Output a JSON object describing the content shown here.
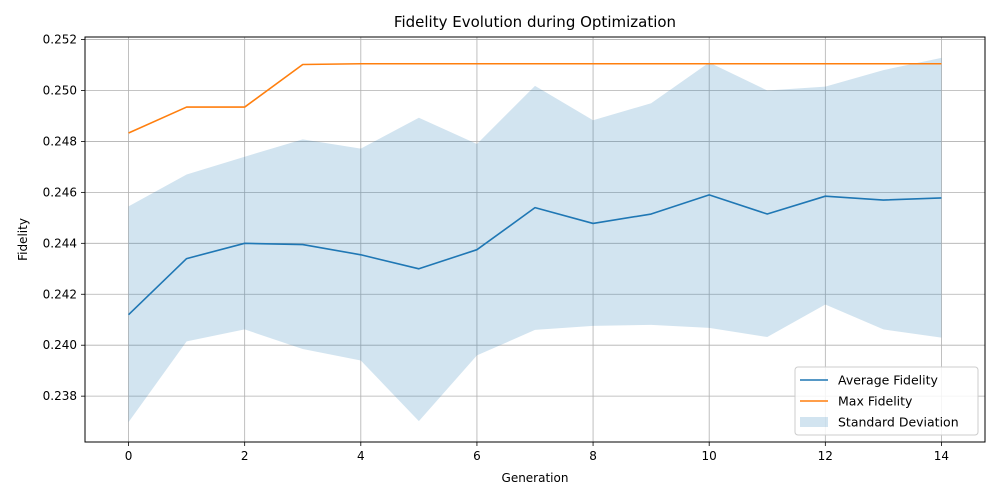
{
  "chart_data": {
    "type": "line",
    "title": "Fidelity Evolution during Optimization",
    "xlabel": "Generation",
    "ylabel": "Fidelity",
    "xlim": [
      -0.75,
      14.75
    ],
    "ylim": [
      0.2362,
      0.2521
    ],
    "xticks": [
      0,
      2,
      4,
      6,
      8,
      10,
      12,
      14
    ],
    "yticks": [
      0.238,
      0.24,
      0.242,
      0.244,
      0.246,
      0.248,
      0.25,
      0.252
    ],
    "grid": true,
    "legend_position": "bottom-right",
    "x": [
      0,
      1,
      2,
      3,
      4,
      5,
      6,
      7,
      8,
      9,
      10,
      11,
      12,
      13,
      14
    ],
    "series": [
      {
        "name": "Average Fidelity",
        "color": "#1f77b4",
        "values": [
          0.2412,
          0.2434,
          0.244,
          0.24395,
          0.24355,
          0.243,
          0.24375,
          0.2454,
          0.24478,
          0.24515,
          0.2459,
          0.24515,
          0.24585,
          0.2457,
          0.24578
        ]
      },
      {
        "name": "Max Fidelity",
        "color": "#ff7f0e",
        "values": [
          0.24833,
          0.24935,
          0.24935,
          0.25102,
          0.25105,
          0.25105,
          0.25105,
          0.25105,
          0.25105,
          0.25105,
          0.25105,
          0.25105,
          0.25105,
          0.25105,
          0.25105
        ]
      }
    ],
    "band": {
      "name": "Standard Deviation",
      "color": "#1f77b4",
      "opacity": 0.2,
      "upper": [
        0.24545,
        0.2467,
        0.2474,
        0.24808,
        0.24772,
        0.24893,
        0.2479,
        0.25018,
        0.24883,
        0.2495,
        0.2511,
        0.25,
        0.25015,
        0.2508,
        0.25128
      ],
      "lower": [
        0.23698,
        0.24015,
        0.24062,
        0.23985,
        0.2394,
        0.23702,
        0.2396,
        0.2406,
        0.24076,
        0.2408,
        0.24068,
        0.24032,
        0.2416,
        0.24062,
        0.2403
      ]
    }
  }
}
